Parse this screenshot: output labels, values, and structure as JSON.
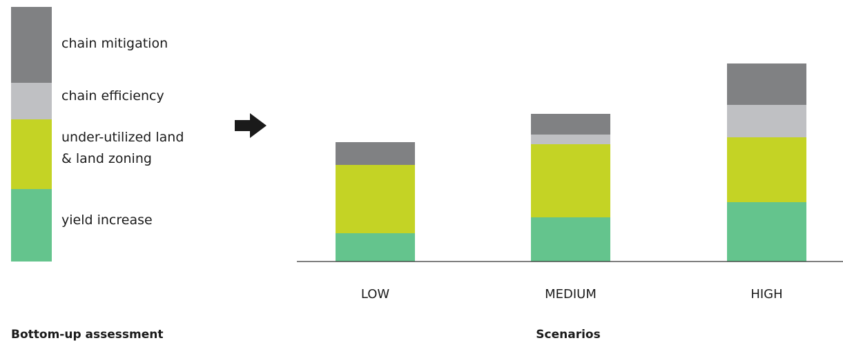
{
  "chart_data": {
    "type": "bar",
    "stacked": true,
    "legend_placement": "left",
    "legend_title": "Bottom-up assessment",
    "xlabel": "Scenarios",
    "ylabel": "",
    "grid": false,
    "categories": [
      "LOW",
      "MEDIUM",
      "HIGH"
    ],
    "series": [
      {
        "name": "yield increase",
        "values": [
          41,
          64,
          86
        ],
        "color": "#64c48d"
      },
      {
        "name": "under-utilized land\n& land zoning",
        "values": [
          99,
          106,
          94
        ],
        "color": "#c4d325"
      },
      {
        "name": "chain efficiency",
        "values": [
          0,
          14,
          47
        ],
        "color": "#bfc0c3"
      },
      {
        "name": "chain mitigation",
        "values": [
          33,
          30,
          60
        ],
        "color": "#808183"
      }
    ],
    "legend_values": [
      105,
      101,
      53,
      110
    ],
    "ylim": [
      0,
      300
    ],
    "arrow_icon": "arrow-right-icon"
  }
}
